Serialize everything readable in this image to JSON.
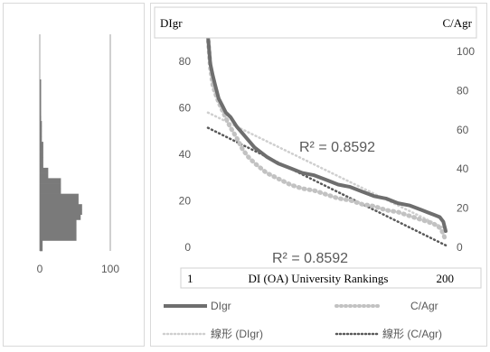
{
  "histogram": {
    "x_ticks": [
      "0",
      "100"
    ],
    "bin_counts": [
      1,
      1,
      1,
      1,
      1,
      1,
      1,
      2,
      3,
      3,
      3,
      3,
      5,
      5,
      5,
      5,
      5,
      12,
      12,
      30,
      30,
      30,
      55,
      55,
      60,
      60,
      58,
      52,
      52,
      52,
      52,
      4,
      4
    ]
  },
  "chart_data": {
    "type": "line",
    "title": "",
    "xlabel": "DI (OA) University Rankings",
    "x_range_labels": [
      "1",
      "200"
    ],
    "xlim": [
      1,
      200
    ],
    "ylabel_left": "DIgr",
    "ylabel_right": "C/Agr",
    "ylim_left": [
      0,
      90
    ],
    "ylim_right": [
      0,
      105
    ],
    "y_ticks_left": [
      "0",
      "20",
      "40",
      "60",
      "80"
    ],
    "y_ticks_right": [
      "0",
      "20",
      "40",
      "60",
      "80",
      "100"
    ],
    "annotations": [
      "R² = 0.8592",
      "R² = 0.8592"
    ],
    "series": [
      {
        "name": "DIgr",
        "axis": "left",
        "color": "#6e6e6e",
        "style": "solid",
        "x": [
          1,
          3,
          5,
          7,
          10,
          13,
          16,
          20,
          25,
          30,
          35,
          40,
          50,
          60,
          70,
          80,
          90,
          100,
          110,
          120,
          130,
          140,
          150,
          160,
          170,
          180,
          185,
          190,
          195,
          198,
          200
        ],
        "y": [
          91,
          79,
          74,
          70,
          64,
          61,
          58,
          56,
          52,
          49,
          46,
          43,
          39,
          36,
          34,
          32,
          31,
          29,
          27,
          26,
          24,
          22,
          21,
          19,
          18,
          16,
          15,
          14,
          13,
          11,
          7
        ]
      },
      {
        "name": "C/Agr",
        "axis": "right",
        "color": "#c2c2c2",
        "style": "dotted",
        "x": [
          1,
          3,
          5,
          7,
          10,
          13,
          16,
          20,
          25,
          30,
          35,
          40,
          50,
          60,
          70,
          80,
          90,
          100,
          110,
          120,
          130,
          140,
          150,
          160,
          170,
          180,
          185,
          190,
          195,
          198,
          200
        ],
        "y": [
          108,
          92,
          83,
          79,
          74,
          70,
          66,
          61,
          56,
          50,
          46,
          43,
          38,
          35,
          32,
          30,
          29,
          27,
          25,
          24,
          22,
          21,
          19,
          18,
          16,
          14,
          13,
          12,
          10,
          7,
          3
        ]
      },
      {
        "name": "線形 (DIgr)",
        "axis": "left",
        "color": "#cfcfcf",
        "style": "dotted",
        "x": [
          1,
          200
        ],
        "y": [
          58,
          8
        ]
      },
      {
        "name": "線形 (C/Agr)",
        "axis": "right",
        "color": "#5a5a5a",
        "style": "dotted",
        "x": [
          1,
          200
        ],
        "y": [
          61,
          1
        ]
      }
    ]
  }
}
